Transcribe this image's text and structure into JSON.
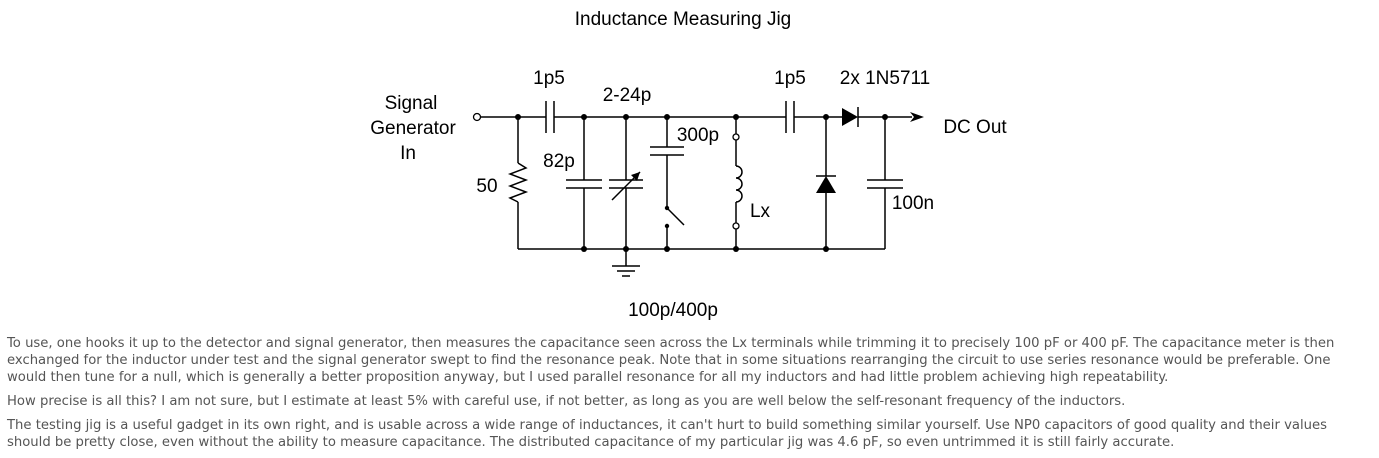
{
  "diagram": {
    "title": "Inductance Measuring Jig",
    "labels": {
      "input_line1": "Signal",
      "input_line2": "Generator",
      "input_line3": "In",
      "resistor": "50",
      "cap_input": "1p5",
      "cap_fixed": "82p",
      "cap_trimmer": "2-24p",
      "cap_switched": "300p",
      "switch_range": "100p/400p",
      "inductor": "Lx",
      "cap_coupling": "1p5",
      "diodes": "2x 1N5711",
      "cap_filter": "100n",
      "output": "DC Out"
    }
  },
  "article": {
    "paragraphs": [
      "To use, one hooks it up to the detector and signal generator, then measures the capacitance seen across the Lx terminals while trimming it to precisely 100 pF or 400 pF. The capacitance meter is then exchanged for the inductor under test and the signal generator swept to find the resonance peak. Note that in some situations rearranging the circuit to use series resonance would be preferable. One would then tune for a null, which is generally a better proposition anyway, but I used parallel resonance for all my inductors and had little problem achieving high repeatability.",
      "How precise is all this? I am not sure, but I estimate at least 5% with careful use, if not better, as long as you are well below the self-resonant frequency of the inductors.",
      "The testing jig is a useful gadget in its own right, and is usable across a wide range of inductances, it can't hurt to build something similar yourself. Use NP0 capacitors of good quality and their values should be pretty close, even without the ability to measure capacitance. The distributed capacitance of my particular jig was 4.6 pF, so even untrimmed it is still fairly accurate."
    ]
  }
}
